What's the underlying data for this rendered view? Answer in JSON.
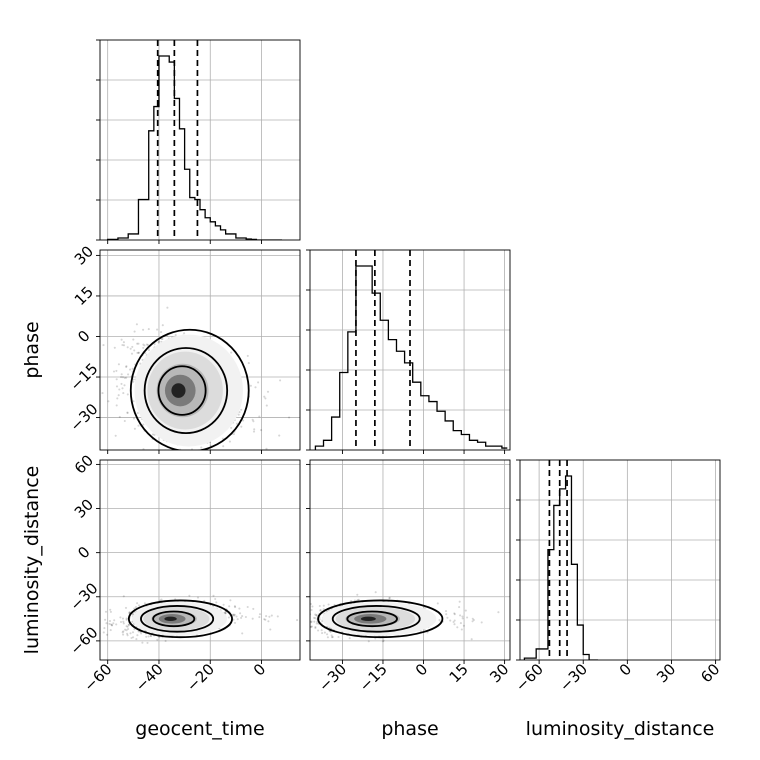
{
  "chart_data": {
    "type": "corner",
    "parameters": [
      "geocent_time",
      "phase",
      "luminosity_distance"
    ],
    "axis_labels": {
      "geocent_time": "geocent_time",
      "phase": "phase",
      "luminosity_distance": "luminosity_distance"
    },
    "ranges": {
      "geocent_time": [
        -63,
        15
      ],
      "phase": [
        -42,
        32
      ],
      "luminosity_distance": [
        -73,
        63
      ]
    },
    "ticks": {
      "geocent_time": [
        -60,
        -40,
        -20,
        0
      ],
      "phase": [
        -30,
        -15,
        0,
        15,
        30
      ],
      "luminosity_distance": [
        -60,
        -30,
        0,
        30,
        60
      ]
    },
    "tick_labels": {
      "geocent_time": [
        "−60",
        "−40",
        "−20",
        "0"
      ],
      "phase": [
        "−30",
        "−15",
        "0",
        "15",
        "30"
      ],
      "luminosity_distance": [
        "−60",
        "−30",
        "0",
        "30",
        "60"
      ]
    },
    "quantiles": {
      "geocent_time": [
        -40.5,
        -34,
        -25
      ],
      "phase": [
        -25,
        -18,
        -5
      ],
      "luminosity_distance": [
        -53,
        -46,
        -41
      ]
    },
    "histograms": {
      "geocent_time": {
        "edges": [
          -60,
          -56,
          -52,
          -48,
          -44,
          -42,
          -40,
          -38,
          -36,
          -34,
          -32,
          -30,
          -28,
          -26,
          -24,
          -22,
          -20,
          -18,
          -16,
          -14,
          -12,
          -10,
          -8,
          -6,
          -4,
          -2,
          0,
          2,
          8
        ],
        "counts": [
          0.3,
          1.0,
          3.0,
          20,
          54,
          66,
          91,
          91,
          88,
          70,
          55,
          35,
          21,
          20,
          15,
          11,
          9,
          7,
          5,
          3,
          3,
          1,
          1,
          0.5,
          0.3,
          0,
          0,
          0
        ]
      },
      "phase": {
        "edges": [
          -40,
          -37,
          -34,
          -31,
          -28,
          -25,
          -22,
          -19,
          -16,
          -13,
          -10,
          -7,
          -4,
          -1,
          2,
          5,
          8,
          11,
          14,
          17,
          20,
          23,
          26,
          29,
          31
        ],
        "counts": [
          2,
          5,
          17,
          40,
          61,
          95,
          95,
          81,
          67,
          57,
          51,
          45,
          35,
          28,
          25,
          20,
          15,
          10,
          8,
          5,
          4,
          2,
          2,
          1
        ]
      },
      "luminosity_distance": {
        "edges": [
          -70,
          -62,
          -54,
          -50,
          -46,
          -42,
          -38,
          -34,
          -30,
          -26,
          -20
        ],
        "counts": [
          1,
          6,
          60,
          84,
          93,
          100,
          52,
          19,
          3,
          0
        ]
      }
    },
    "pairs": [
      {
        "x": "geocent_time",
        "y": "phase",
        "center": [
          -33,
          -20
        ],
        "spread": [
          8,
          9
        ],
        "tilt": -0.3
      },
      {
        "x": "geocent_time",
        "y": "luminosity_distance",
        "center": [
          -36,
          -45
        ],
        "spread": [
          7,
          5
        ],
        "tilt": 0.25
      },
      {
        "x": "phase",
        "y": "luminosity_distance",
        "center": [
          -21,
          -45
        ],
        "spread": [
          8,
          5
        ],
        "tilt": 0.1
      }
    ],
    "contour_levels": [
      "0.5",
      "1.0",
      "1.5",
      "2.0"
    ]
  }
}
